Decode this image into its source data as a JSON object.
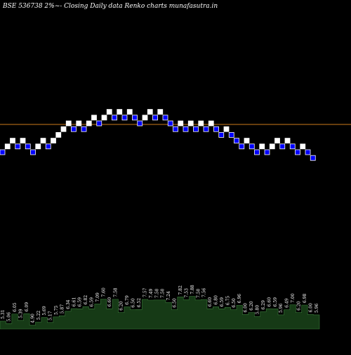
{
  "title": "BSE 536738  2%~-  Closing Daily data  Renko  charts munafasutra.in",
  "colors": {
    "background": "#000000",
    "up_brick_fill": "#ffffff",
    "down_brick_fill": "#0000ff",
    "down_brick_stroke": "#ffffff",
    "reference_line": "#cc7a1a",
    "volume_fill": "#163a16",
    "volume_stroke": "#3a7a3a",
    "text": "#ffffff"
  },
  "chart_data": {
    "type": "renko",
    "brick_size_label": "2%",
    "price_mode": "Closing",
    "reference_line": true,
    "bricks": [
      {
        "dir": "down",
        "level": 0
      },
      {
        "dir": "up",
        "level": 1
      },
      {
        "dir": "up",
        "level": 2
      },
      {
        "dir": "down",
        "level": 1
      },
      {
        "dir": "up",
        "level": 2
      },
      {
        "dir": "down",
        "level": 1
      },
      {
        "dir": "down",
        "level": 0
      },
      {
        "dir": "up",
        "level": 1
      },
      {
        "dir": "up",
        "level": 2
      },
      {
        "dir": "down",
        "level": 1
      },
      {
        "dir": "up",
        "level": 2
      },
      {
        "dir": "up",
        "level": 3
      },
      {
        "dir": "up",
        "level": 4
      },
      {
        "dir": "up",
        "level": 5
      },
      {
        "dir": "down",
        "level": 4
      },
      {
        "dir": "up",
        "level": 5
      },
      {
        "dir": "down",
        "level": 4
      },
      {
        "dir": "up",
        "level": 5
      },
      {
        "dir": "up",
        "level": 6
      },
      {
        "dir": "down",
        "level": 5
      },
      {
        "dir": "up",
        "level": 6
      },
      {
        "dir": "up",
        "level": 7
      },
      {
        "dir": "down",
        "level": 6
      },
      {
        "dir": "up",
        "level": 7
      },
      {
        "dir": "down",
        "level": 6
      },
      {
        "dir": "up",
        "level": 7
      },
      {
        "dir": "down",
        "level": 6
      },
      {
        "dir": "down",
        "level": 5
      },
      {
        "dir": "up",
        "level": 6
      },
      {
        "dir": "up",
        "level": 7
      },
      {
        "dir": "down",
        "level": 6
      },
      {
        "dir": "up",
        "level": 7
      },
      {
        "dir": "down",
        "level": 6
      },
      {
        "dir": "down",
        "level": 5
      },
      {
        "dir": "down",
        "level": 4
      },
      {
        "dir": "up",
        "level": 5
      },
      {
        "dir": "down",
        "level": 4
      },
      {
        "dir": "up",
        "level": 5
      },
      {
        "dir": "down",
        "level": 4
      },
      {
        "dir": "up",
        "level": 5
      },
      {
        "dir": "down",
        "level": 4
      },
      {
        "dir": "up",
        "level": 5
      },
      {
        "dir": "down",
        "level": 4
      },
      {
        "dir": "down",
        "level": 3
      },
      {
        "dir": "up",
        "level": 4
      },
      {
        "dir": "down",
        "level": 3
      },
      {
        "dir": "down",
        "level": 2
      },
      {
        "dir": "down",
        "level": 1
      },
      {
        "dir": "up",
        "level": 2
      },
      {
        "dir": "down",
        "level": 1
      },
      {
        "dir": "down",
        "level": 0
      },
      {
        "dir": "up",
        "level": 1
      },
      {
        "dir": "down",
        "level": 0
      },
      {
        "dir": "up",
        "level": 1
      },
      {
        "dir": "up",
        "level": 2
      },
      {
        "dir": "down",
        "level": 1
      },
      {
        "dir": "up",
        "level": 2
      },
      {
        "dir": "down",
        "level": 1
      },
      {
        "dir": "down",
        "level": 0
      },
      {
        "dir": "up",
        "level": 1
      },
      {
        "dir": "down",
        "level": 0
      },
      {
        "dir": "down",
        "level": -1
      }
    ],
    "volume": {
      "labels": [
        "5.31",
        "5.06",
        "6.05",
        "5.39",
        "6.09",
        "4.90",
        "5.22",
        "5.69",
        "5.17",
        "5.75",
        "5.87",
        "6.34",
        "6.61",
        "6.59",
        "6.82",
        "6.59",
        "7.09",
        "7.60",
        "6.60",
        "7.58",
        "6.20",
        "6.79",
        "6.50",
        "6.52",
        "7.57",
        "7.49",
        "7.50",
        "7.50",
        "7.24",
        "6.50",
        "7.82",
        "7.53",
        "7.88",
        "7.50",
        "7.56",
        "6.60",
        "6.80",
        "6.59",
        "6.75",
        "6.50",
        "6.96",
        "6.00",
        "6.20",
        "5.80",
        "6.29",
        "6.60",
        "6.59",
        "5.96",
        "6.49",
        "7.00",
        "6.20",
        "6.98",
        "6.00",
        "5.96"
      ],
      "values": [
        5.31,
        5.06,
        6.05,
        5.39,
        6.09,
        4.9,
        5.22,
        5.69,
        5.17,
        5.75,
        5.87,
        6.34,
        6.61,
        6.59,
        6.82,
        6.59,
        7.09,
        7.6,
        6.6,
        7.58,
        6.2,
        6.79,
        6.5,
        6.52,
        7.57,
        7.49,
        7.5,
        7.5,
        7.24,
        6.5,
        7.82,
        7.53,
        7.88,
        7.5,
        7.56,
        6.6,
        6.8,
        6.59,
        6.75,
        6.5,
        6.96,
        6.0,
        6.2,
        5.8,
        6.29,
        6.6,
        6.59,
        5.96,
        6.49,
        7.0,
        6.2,
        6.98,
        6.0,
        5.96
      ]
    }
  }
}
